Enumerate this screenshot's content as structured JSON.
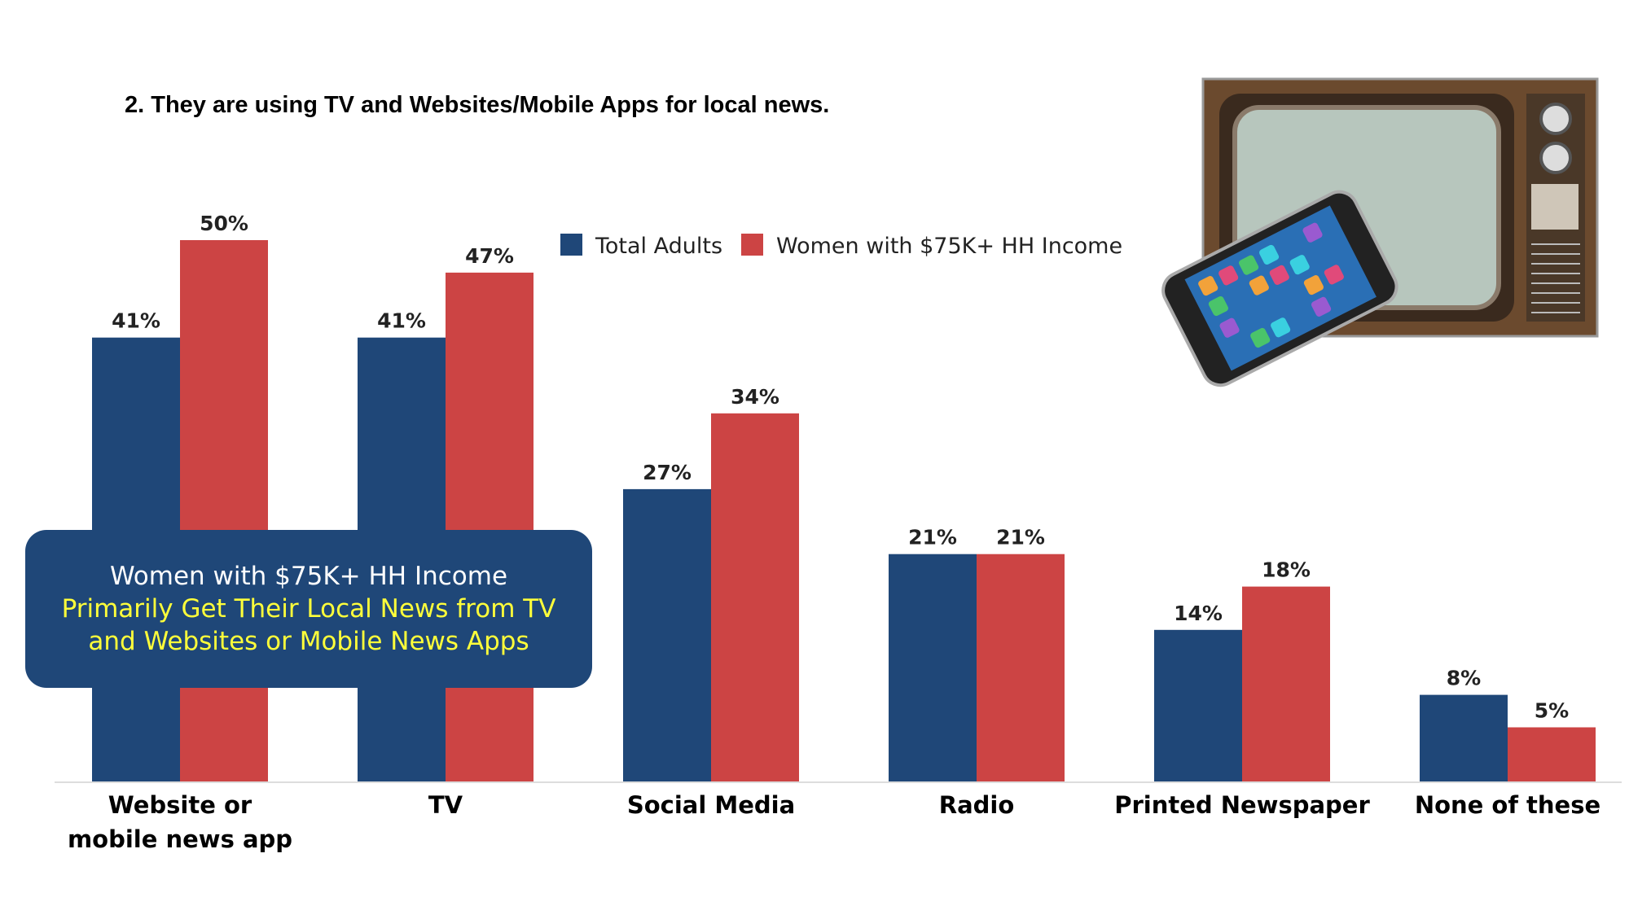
{
  "chart_data": {
    "type": "bar",
    "title": "2. They are using TV and Websites/Mobile Apps for local news.",
    "categories": [
      "Website or\nmobile news app",
      "TV",
      "Social Media",
      "Radio",
      "Printed Newspaper",
      "None of these"
    ],
    "series": [
      {
        "name": "Total Adults",
        "color": "#1f4778",
        "values": [
          41,
          41,
          27,
          21,
          14,
          8
        ],
        "value_labels": [
          "41%",
          "41%",
          "27%",
          "21%",
          "14%",
          "8%"
        ]
      },
      {
        "name": "Women with $75K+ HH Income",
        "color": "#cc4444",
        "values": [
          50,
          47,
          34,
          21,
          18,
          5
        ],
        "value_labels": [
          "50%",
          "47%",
          "34%",
          "21%",
          "18%",
          "5%"
        ]
      }
    ],
    "annotations": [
      "Women with $75K+ HH Income",
      "Primarily Get Their Local News from TV",
      "and Websites or Mobile News Apps"
    ],
    "legend": "top"
  }
}
